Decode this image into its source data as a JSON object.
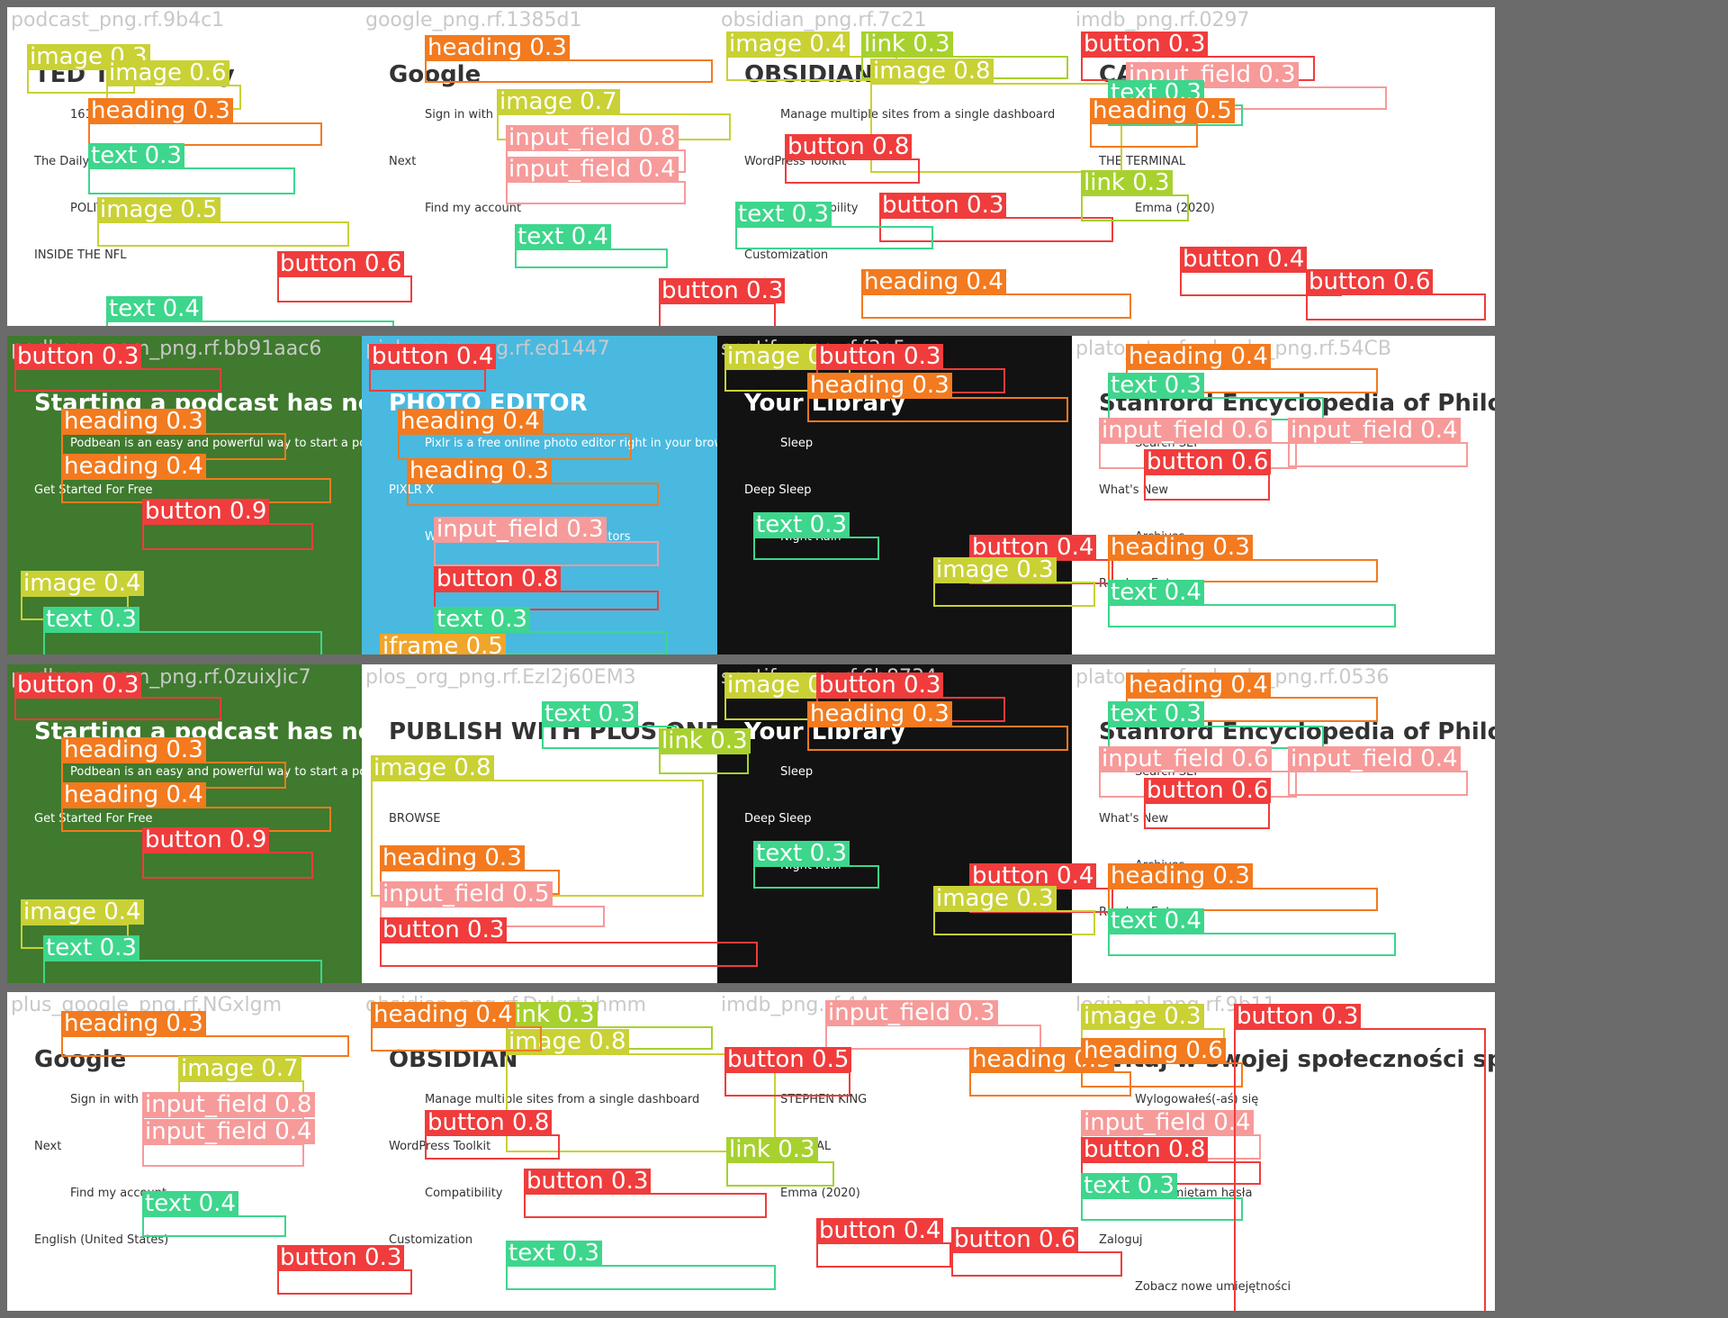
{
  "colors": {
    "text": "#3dd68c",
    "button": "#f03c3c",
    "heading": "#f37a1e",
    "image": "#c9d135",
    "input_field": "#f79a9a",
    "link": "#a7d12e",
    "iframe": "#f0a52b"
  },
  "tiles": [
    {
      "filename": "podcast_png.rf.9b4c1",
      "bg": "#ffffff",
      "preview": [
        "TED Talks Daily",
        "1619",
        "The Daily",
        "POLITICO",
        "INSIDE THE NFL"
      ],
      "annotations": [
        {
          "cls": "image",
          "label": "image 0.3"
        },
        {
          "cls": "image",
          "label": "image 0.6"
        },
        {
          "cls": "heading",
          "label": "heading 0.3"
        },
        {
          "cls": "text",
          "label": "text 0.3"
        },
        {
          "cls": "image",
          "label": "image 0.5"
        },
        {
          "cls": "button",
          "label": "button 0.6"
        },
        {
          "cls": "text",
          "label": "text 0.4"
        }
      ]
    },
    {
      "filename": "google_png.rf.1385d1",
      "bg": "#ffffff",
      "preview": [
        "Google",
        "Sign in with",
        "Next",
        "Find my account"
      ],
      "annotations": [
        {
          "cls": "heading",
          "label": "heading 0.3"
        },
        {
          "cls": "image",
          "label": "image 0.7"
        },
        {
          "cls": "input_field",
          "label": "input_field 0.8"
        },
        {
          "cls": "input_field",
          "label": "input_field 0.4"
        },
        {
          "cls": "text",
          "label": "text 0.4"
        },
        {
          "cls": "button",
          "label": "button 0.3"
        }
      ]
    },
    {
      "filename": "obsidian_png.rf.7c21",
      "bg": "#ffffff",
      "preview": [
        "OBSIDIAN",
        "Manage multiple sites from a single dashboard",
        "WordPress Toolkit",
        "Compatibility",
        "Customization"
      ],
      "annotations": [
        {
          "cls": "image",
          "label": "image 0.4"
        },
        {
          "cls": "link",
          "label": "link 0.3"
        },
        {
          "cls": "image",
          "label": "image 0.8"
        },
        {
          "cls": "button",
          "label": "button 0.8"
        },
        {
          "cls": "button",
          "label": "button 0.3"
        },
        {
          "cls": "text",
          "label": "text 0.3"
        },
        {
          "cls": "heading",
          "label": "heading 0.4"
        }
      ]
    },
    {
      "filename": "imdb_png.rf.0297",
      "bg": "#ffffff",
      "preview": [
        "CAPONE",
        "STEPHEN KING",
        "THE TERMINAL",
        "Emma (2020)"
      ],
      "annotations": [
        {
          "cls": "button",
          "label": "button 0.3"
        },
        {
          "cls": "input_field",
          "label": "input_field 0.3"
        },
        {
          "cls": "text",
          "label": "text 0.3"
        },
        {
          "cls": "heading",
          "label": "heading 0.5"
        },
        {
          "cls": "link",
          "label": "link 0.3"
        },
        {
          "cls": "button",
          "label": "button 0.4"
        },
        {
          "cls": "button",
          "label": "button 0.6"
        }
      ]
    },
    {
      "filename": "podbean_com_png.rf.bb91aac6",
      "bg": "#3f7a2e",
      "preview": [
        "Starting a podcast has never been easier",
        "Podbean is an easy and powerful way to start a podcast.",
        "Get Started For Free"
      ],
      "annotations": [
        {
          "cls": "button",
          "label": "button 0.3"
        },
        {
          "cls": "heading",
          "label": "heading 0.3"
        },
        {
          "cls": "heading",
          "label": "heading 0.4"
        },
        {
          "cls": "button",
          "label": "button 0.9"
        },
        {
          "cls": "image",
          "label": "image 0.4"
        },
        {
          "cls": "text",
          "label": "text 0.3"
        }
      ]
    },
    {
      "filename": "pixlr_com_png.rf.ed1447",
      "bg": "#49b9e0",
      "preview": [
        "PHOTO EDITOR",
        "Pixlr is a free online photo editor right in your browser.",
        "PIXLR X",
        "We have two brand newlish editors"
      ],
      "annotations": [
        {
          "cls": "button",
          "label": "button 0.4"
        },
        {
          "cls": "heading",
          "label": "heading 0.4"
        },
        {
          "cls": "heading",
          "label": "heading 0.3"
        },
        {
          "cls": "input_field",
          "label": "input_field 0.3"
        },
        {
          "cls": "button",
          "label": "button 0.8"
        },
        {
          "cls": "text",
          "label": "text 0.3"
        },
        {
          "cls": "iframe",
          "label": "iframe 0.5"
        }
      ]
    },
    {
      "filename": "spotify_png.rf.f3e5",
      "bg": "#121212",
      "preview": [
        "Your Library",
        "Sleep",
        "Deep Sleep",
        "Night Rain"
      ],
      "annotations": [
        {
          "cls": "image",
          "label": "image 0.3"
        },
        {
          "cls": "button",
          "label": "button 0.3"
        },
        {
          "cls": "heading",
          "label": "heading 0.3"
        },
        {
          "cls": "text",
          "label": "text 0.3"
        },
        {
          "cls": "button",
          "label": "button 0.4"
        },
        {
          "cls": "image",
          "label": "image 0.3"
        }
      ]
    },
    {
      "filename": "plato_stanford_edu_png.rf.54CB",
      "bg": "#ffffff",
      "preview": [
        "Stanford Encyclopedia of Philosophy",
        "Search SEP",
        "What's New",
        "Archives",
        "Random Entry"
      ],
      "annotations": [
        {
          "cls": "heading",
          "label": "heading 0.4"
        },
        {
          "cls": "text",
          "label": "text 0.3"
        },
        {
          "cls": "input_field",
          "label": "input_field 0.6"
        },
        {
          "cls": "input_field",
          "label": "input_field 0.4"
        },
        {
          "cls": "button",
          "label": "button 0.6"
        },
        {
          "cls": "heading",
          "label": "heading 0.3"
        },
        {
          "cls": "text",
          "label": "text 0.4"
        }
      ]
    },
    {
      "filename": "podbean_com_png.rf.0zuixJic7",
      "bg": "#3f7a2e",
      "preview": [
        "Starting a podcast has never been easier",
        "Podbean is an easy and powerful way to start a podcast.",
        "Get Started For Free"
      ],
      "annotations": [
        {
          "cls": "button",
          "label": "button 0.3"
        },
        {
          "cls": "heading",
          "label": "heading 0.3"
        },
        {
          "cls": "heading",
          "label": "heading 0.4"
        },
        {
          "cls": "button",
          "label": "button 0.9"
        },
        {
          "cls": "image",
          "label": "image 0.4"
        },
        {
          "cls": "text",
          "label": "text 0.3"
        }
      ]
    },
    {
      "filename": "plos_org_png.rf.Ezl2j60EM3",
      "bg": "#ffffff",
      "preview": [
        "PUBLISH WITH PLOS ONE",
        "ABOUT",
        "BROWSE"
      ],
      "annotations": [
        {
          "cls": "text",
          "label": "text 0.3"
        },
        {
          "cls": "link",
          "label": "link 0.3"
        },
        {
          "cls": "image",
          "label": "image 0.8"
        },
        {
          "cls": "heading",
          "label": "heading 0.3"
        },
        {
          "cls": "input_field",
          "label": "input_field 0.5"
        },
        {
          "cls": "button",
          "label": "button 0.3"
        }
      ]
    },
    {
      "filename": "spotify_png.rf.6b8734",
      "bg": "#121212",
      "preview": [
        "Your Library",
        "Sleep",
        "Deep Sleep",
        "Night Rain"
      ],
      "annotations": [
        {
          "cls": "image",
          "label": "image 0.3"
        },
        {
          "cls": "button",
          "label": "button 0.3"
        },
        {
          "cls": "heading",
          "label": "heading 0.3"
        },
        {
          "cls": "text",
          "label": "text 0.3"
        },
        {
          "cls": "button",
          "label": "button 0.4"
        },
        {
          "cls": "image",
          "label": "image 0.3"
        }
      ]
    },
    {
      "filename": "plato_stanford_edu_png.rf.0536",
      "bg": "#ffffff",
      "preview": [
        "Stanford Encyclopedia of Philosophy",
        "Search SEP",
        "What's New",
        "Archives",
        "Random Entry"
      ],
      "annotations": [
        {
          "cls": "heading",
          "label": "heading 0.4"
        },
        {
          "cls": "text",
          "label": "text 0.3"
        },
        {
          "cls": "input_field",
          "label": "input_field 0.6"
        },
        {
          "cls": "input_field",
          "label": "input_field 0.4"
        },
        {
          "cls": "button",
          "label": "button 0.6"
        },
        {
          "cls": "heading",
          "label": "heading 0.3"
        },
        {
          "cls": "text",
          "label": "text 0.4"
        }
      ]
    },
    {
      "filename": "plus_google_png.rf.NGxlgm",
      "bg": "#ffffff",
      "preview": [
        "Google",
        "Sign in with",
        "Next",
        "Find my account",
        "English (United States)"
      ],
      "annotations": [
        {
          "cls": "heading",
          "label": "heading 0.3"
        },
        {
          "cls": "image",
          "label": "image 0.7"
        },
        {
          "cls": "input_field",
          "label": "input_field 0.8"
        },
        {
          "cls": "input_field",
          "label": "input_field 0.4"
        },
        {
          "cls": "text",
          "label": "text 0.4"
        },
        {
          "cls": "button",
          "label": "button 0.3"
        }
      ]
    },
    {
      "filename": "obsidian_png.rf.Dvlgrtyhmm",
      "bg": "#ffffff",
      "preview": [
        "OBSIDIAN",
        "Manage multiple sites from a single dashboard",
        "WordPress Toolkit",
        "Compatibility",
        "Customization"
      ],
      "annotations": [
        {
          "cls": "image",
          "label": "image 0.4"
        },
        {
          "cls": "link",
          "label": "link 0.3"
        },
        {
          "cls": "image",
          "label": "image 0.8"
        },
        {
          "cls": "button",
          "label": "button 0.8"
        },
        {
          "cls": "button",
          "label": "button 0.3"
        },
        {
          "cls": "text",
          "label": "text 0.3"
        },
        {
          "cls": "heading",
          "label": "heading 0.4"
        }
      ]
    },
    {
      "filename": "imdb_png.rf.44aa",
      "bg": "#ffffff",
      "preview": [
        "CAPONE",
        "STEPHEN KING",
        "THE TERMINAL",
        "Emma (2020)"
      ],
      "annotations": [
        {
          "cls": "input_field",
          "label": "input_field 0.3"
        },
        {
          "cls": "button",
          "label": "button 0.5"
        },
        {
          "cls": "heading",
          "label": "heading 0.5"
        },
        {
          "cls": "link",
          "label": "link 0.3"
        },
        {
          "cls": "button",
          "label": "button 0.4"
        },
        {
          "cls": "button",
          "label": "button 0.6"
        }
      ]
    },
    {
      "filename": "login_pl_png.rf.9b11",
      "bg": "#ffffff",
      "preview": [
        "Witaj w swojej społeczności specjalistów",
        "Wylogowałeś(-aś) się",
        "Hasło",
        "Nie pamiętam hasła",
        "Zaloguj",
        "Zobacz nowe umiejętności"
      ],
      "annotations": [
        {
          "cls": "image",
          "label": "image 0.3"
        },
        {
          "cls": "heading",
          "label": "heading 0.6"
        },
        {
          "cls": "input_field",
          "label": "input_field 0.4"
        },
        {
          "cls": "button",
          "label": "button 0.8"
        },
        {
          "cls": "text",
          "label": "text 0.3"
        },
        {
          "cls": "button",
          "label": "button 0.3"
        }
      ]
    }
  ]
}
